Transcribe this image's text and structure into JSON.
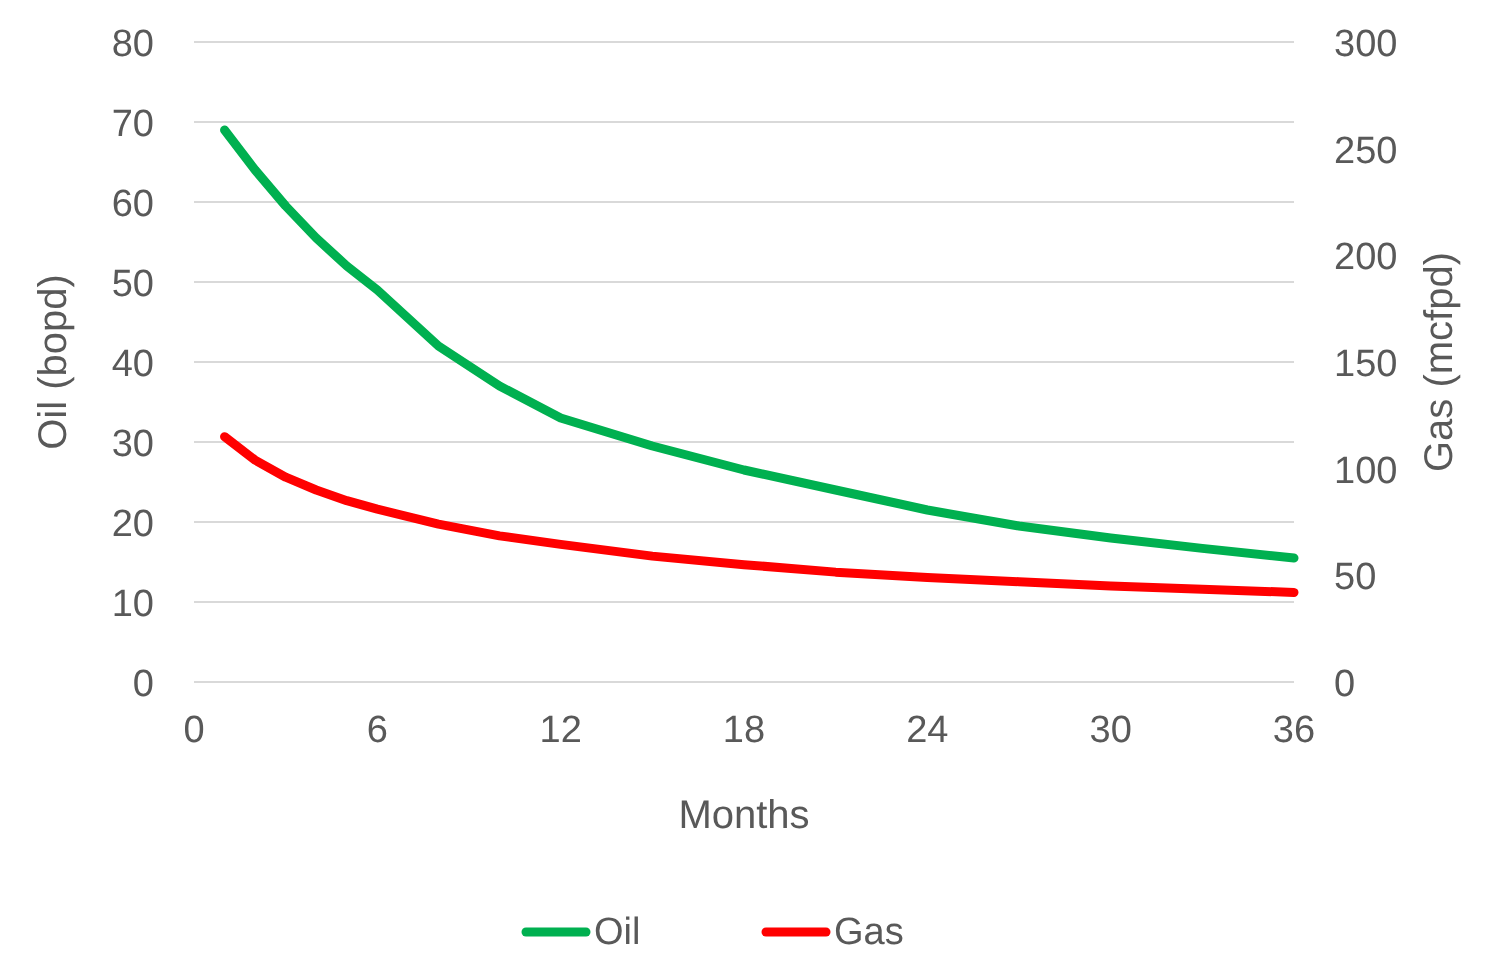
{
  "chart_data": {
    "type": "line",
    "xlabel": "Months",
    "ylabel": "Oil (bopd)",
    "y2label": "Gas (mcfpd)",
    "x": [
      1,
      2,
      3,
      4,
      5,
      6,
      8,
      10,
      12,
      15,
      18,
      21,
      24,
      27,
      30,
      33,
      36
    ],
    "series": [
      {
        "name": "Oil",
        "color": "#00b050",
        "values": [
          69,
          64,
          59.5,
          55.5,
          52,
          49,
          42,
          37,
          33,
          29.5,
          26.5,
          24,
          21.5,
          19.5,
          18,
          16.7,
          15.5
        ]
      },
      {
        "name": "Gas",
        "color": "#ff0000",
        "axis": "y2",
        "values": [
          115,
          104,
          96,
          90,
          85,
          81,
          74,
          68.5,
          64.5,
          59,
          55,
          51.5,
          49,
          47,
          45,
          43.5,
          42
        ]
      }
    ],
    "xlim": [
      0,
      36
    ],
    "xticks": [
      0,
      6,
      12,
      18,
      24,
      30,
      36
    ],
    "ylim": [
      0,
      80
    ],
    "yticks": [
      0,
      10,
      20,
      30,
      40,
      50,
      60,
      70,
      80
    ],
    "y2lim": [
      0,
      300
    ],
    "y2ticks": [
      0,
      50,
      100,
      150,
      200,
      250,
      300
    ],
    "grid": "y",
    "legend": "bottom",
    "marker": "none",
    "line_style": "solid"
  }
}
